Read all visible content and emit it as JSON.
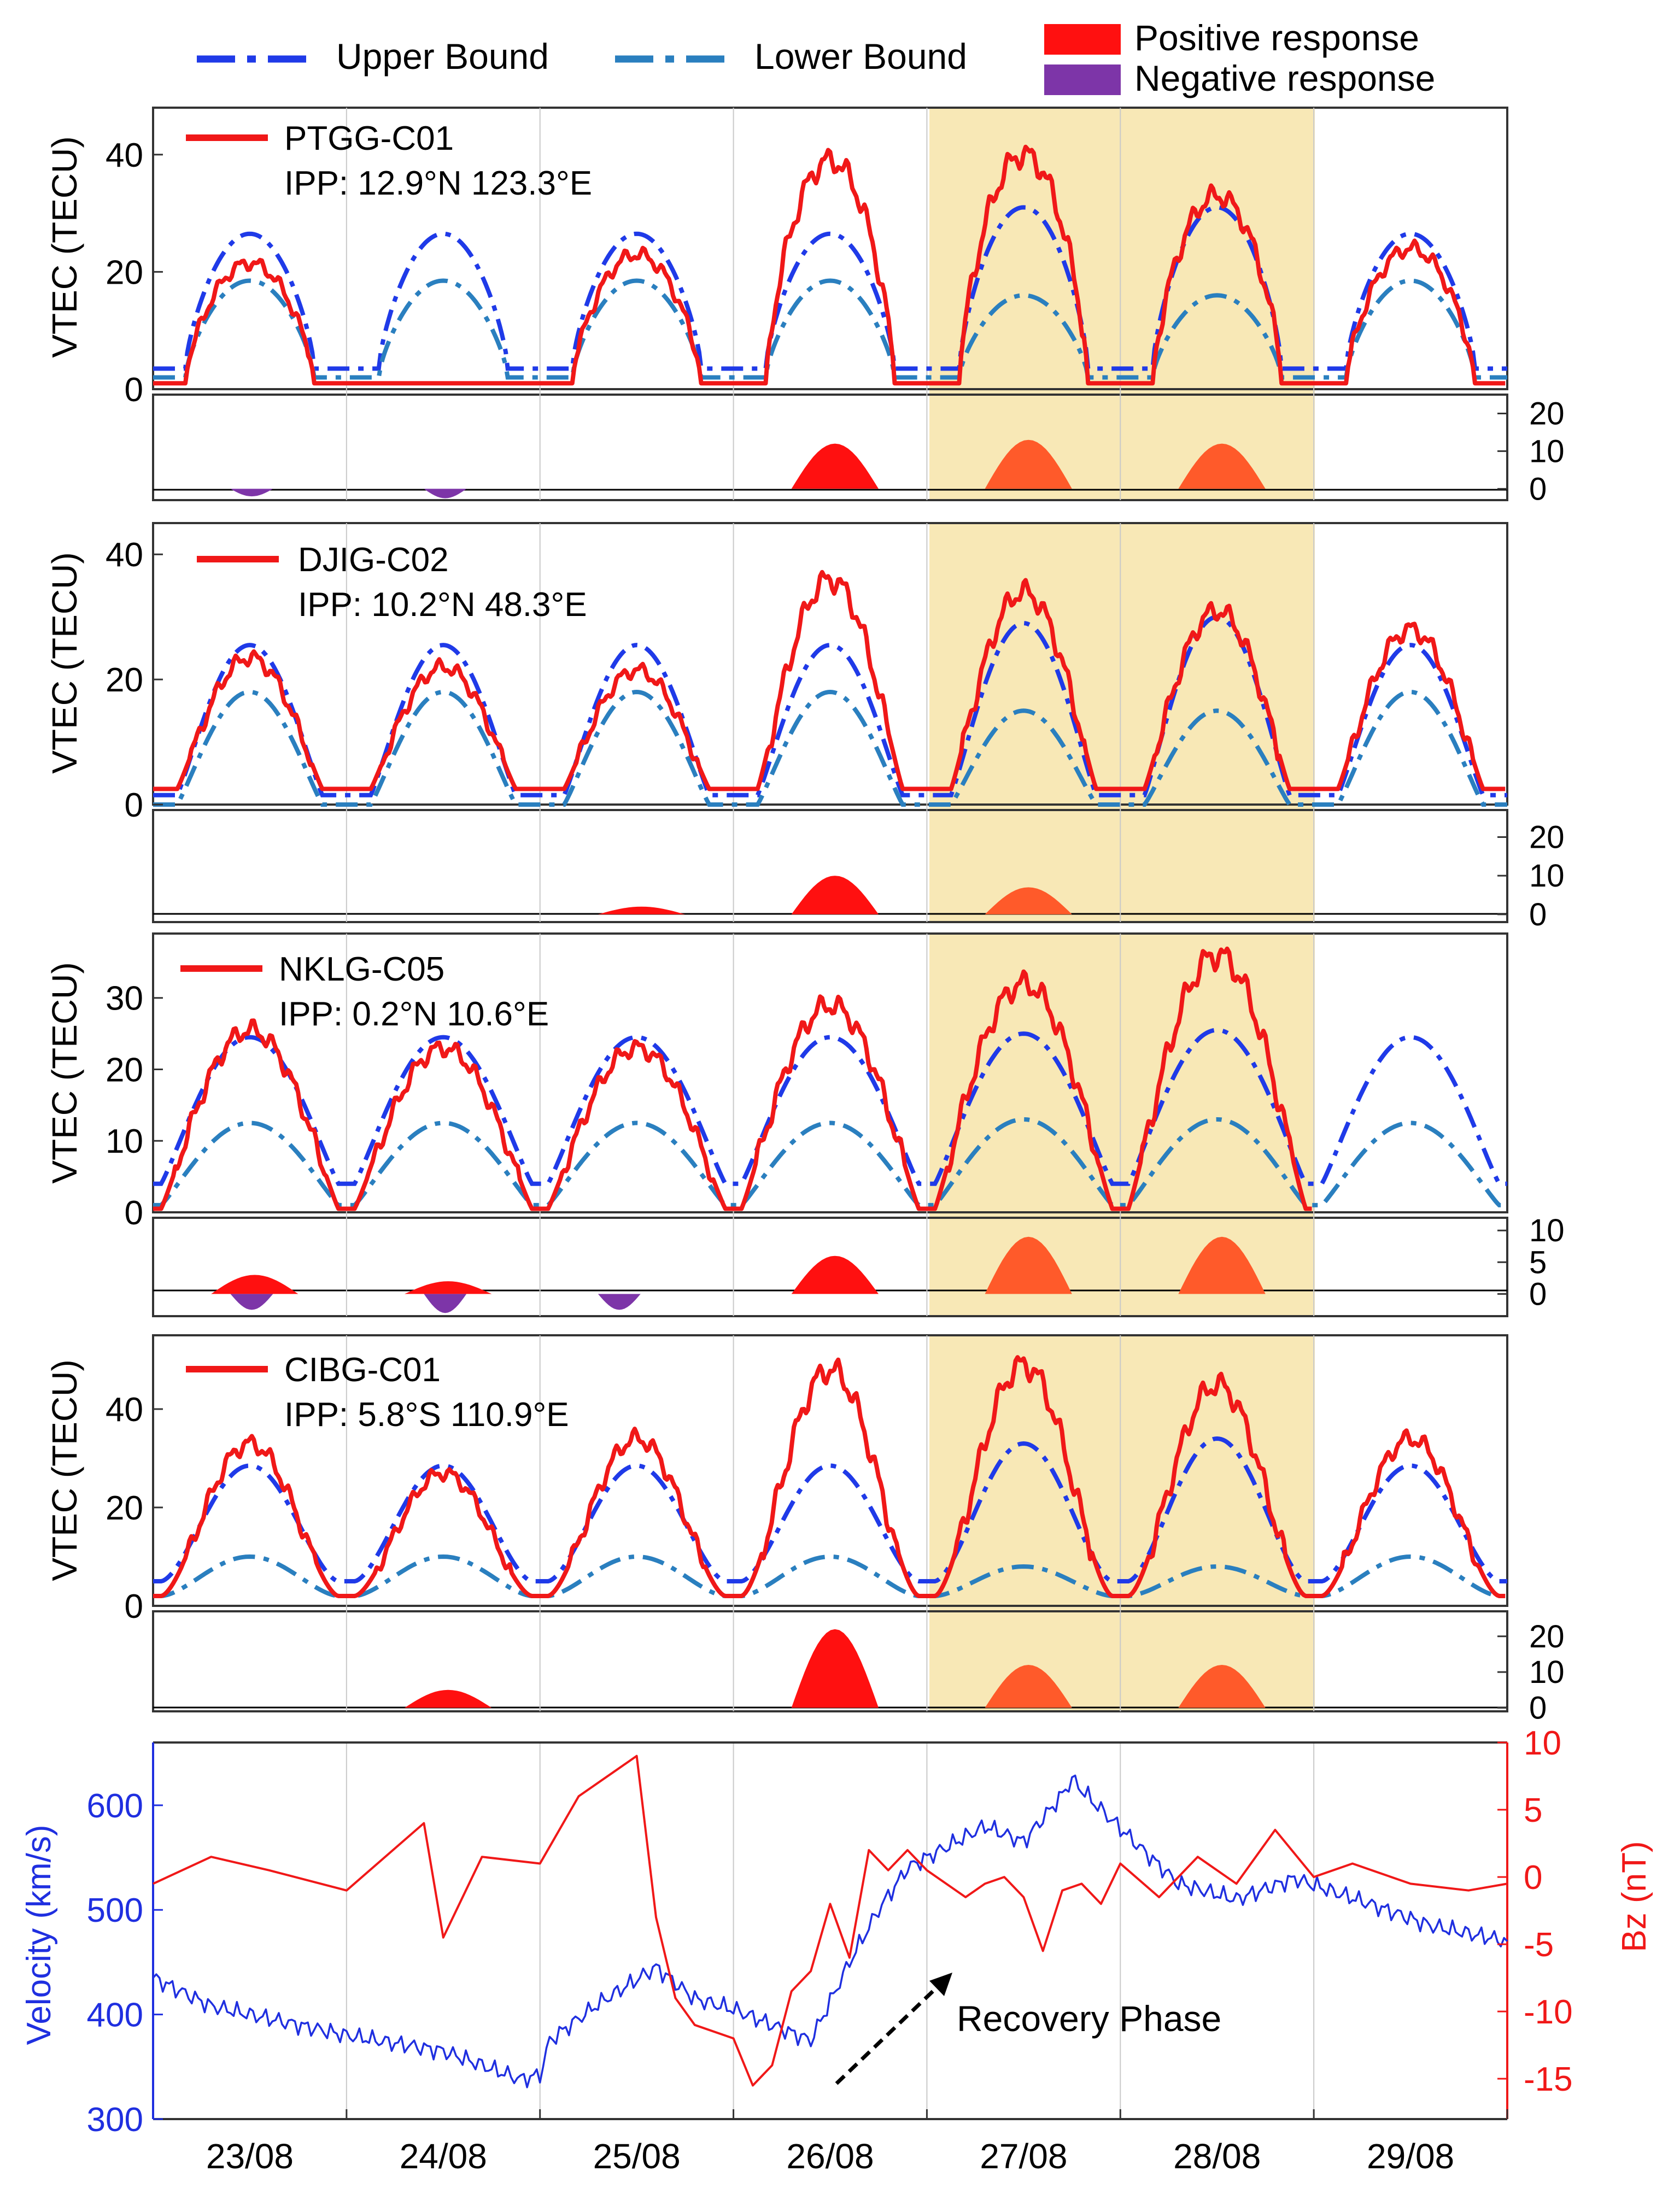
{
  "colors": {
    "upper": "#1f3ae8",
    "lower": "#2a7fbf",
    "vtec": "#f01818",
    "positive": "#ff1010",
    "negative": "#7d35a8",
    "storm_shade": "#f8e8b6",
    "velocity": "#1f2fe0",
    "bz": "#f01818"
  },
  "legend": {
    "upper": "Upper Bound",
    "lower": "Lower Bound",
    "positive": "Positive response",
    "negative": "Negative response"
  },
  "chart_data": {
    "type": "line",
    "x_ticks": [
      "23/08",
      "24/08",
      "25/08",
      "26/08",
      "27/08",
      "28/08",
      "29/08"
    ],
    "x_range_days": [
      0,
      7
    ],
    "storm_window_days": [
      4.0,
      6.0
    ],
    "vtec_ylabel": "VTEC  (TECU)",
    "panels": [
      {
        "station": "PTGG-C01",
        "ipp": "IPP: 12.9°N 123.3°E",
        "ylim": [
          0,
          48
        ],
        "yticks": [
          0,
          20,
          40
        ],
        "daily_upper_peak": 26.5,
        "daily_upper_min": 3.5,
        "daily_lower_peak": 18.5,
        "daily_lower_min": 2,
        "storm_upper_peaks": [
          31,
          31
        ],
        "storm_lower_peaks": [
          16,
          16
        ],
        "vtec_daily_peaks": [
          21.5,
          0,
          23,
          39,
          40,
          33,
          24
        ],
        "vtec_daily_minimum": 1,
        "response_ylim": [
          -3,
          25
        ],
        "response_yticks": [
          0,
          10,
          20
        ],
        "positive_peaks": [
          12,
          13,
          12
        ],
        "negative_troughs": [
          -2,
          -2.5
        ]
      },
      {
        "station": "DJIG-C02",
        "ipp": "IPP: 10.2°N 48.3°E",
        "ylim": [
          0,
          45
        ],
        "yticks": [
          0,
          20,
          40
        ],
        "daily_upper_peak": 25.5,
        "daily_upper_min": 1.5,
        "daily_lower_peak": 18,
        "daily_lower_min": 0,
        "storm_upper_peaks": [
          29,
          30
        ],
        "storm_lower_peaks": [
          15,
          15
        ],
        "vtec_daily_peaks": [
          23.5,
          22,
          21.5,
          36,
          34,
          31,
          28
        ],
        "vtec_daily_minimum": 2.5,
        "response_ylim": [
          -2,
          27
        ],
        "response_yticks": [
          0,
          10,
          20
        ],
        "positive_peaks": [
          2,
          10,
          7
        ],
        "negative_troughs": []
      },
      {
        "station": "NKLG-C05",
        "ipp": "IPP: 0.2°N 10.6°E",
        "ylim": [
          0,
          39
        ],
        "yticks": [
          0,
          10,
          20,
          30
        ],
        "daily_upper_peak": 24.5,
        "daily_upper_min": 4,
        "daily_lower_peak": 12.5,
        "daily_lower_min": 1,
        "storm_upper_peaks": [
          25,
          25.5
        ],
        "storm_lower_peaks": [
          13,
          13
        ],
        "vtec_daily_peaks": [
          25.5,
          23,
          23,
          29,
          32,
          36
        ],
        "vtec_daily_minimum": 0.5,
        "response_ylim": [
          -3.5,
          12
        ],
        "response_yticks": [
          0,
          5,
          10
        ],
        "positive_peaks": [
          3,
          2,
          6,
          9,
          9
        ],
        "negative_troughs": [
          -2.5,
          -3,
          -2.5
        ]
      },
      {
        "station": "CIBG-C01",
        "ipp": "IPP: 5.8°S 110.9°E",
        "ylim": [
          0,
          55
        ],
        "yticks": [
          0,
          20,
          40
        ],
        "daily_upper_peak": 28.5,
        "daily_upper_min": 5,
        "daily_lower_peak": 10,
        "daily_lower_min": 2,
        "storm_upper_peaks": [
          33,
          34
        ],
        "storm_lower_peaks": [
          8,
          8
        ],
        "vtec_daily_peaks": [
          33,
          27,
          34,
          48,
          49,
          45,
          34
        ],
        "vtec_daily_minimum": 2,
        "response_ylim": [
          -1,
          27
        ],
        "response_yticks": [
          0,
          10,
          20
        ],
        "positive_peaks": [
          5,
          22,
          12,
          12
        ],
        "negative_troughs": []
      }
    ],
    "solar_wind": {
      "velocity_label": "Velocity (km/s)",
      "bz_label": "Bz (nT)",
      "velocity_ylim": [
        300,
        660
      ],
      "velocity_yticks": [
        300,
        400,
        500,
        600
      ],
      "bz_ylim": [
        -18,
        10
      ],
      "bz_yticks": [
        -15,
        -10,
        -5,
        0,
        5,
        10
      ],
      "velocity_series": {
        "x": [
          0,
          0.3,
          1.0,
          1.5,
          1.9,
          2.0,
          2.05,
          2.3,
          2.6,
          2.8,
          3.0,
          3.2,
          3.4,
          3.6,
          3.75,
          3.9,
          4.1,
          4.3,
          4.5,
          4.7,
          4.75,
          4.85,
          5.1,
          5.3,
          5.6,
          5.9,
          6.3,
          6.6,
          7.0
        ],
        "y": [
          435,
          408,
          380,
          365,
          338,
          342,
          375,
          410,
          445,
          415,
          405,
          390,
          375,
          450,
          500,
          540,
          560,
          580,
          565,
          610,
          625,
          605,
          560,
          525,
          510,
          530,
          505,
          485,
          470
        ]
      },
      "bz_series": {
        "x": [
          0,
          0.3,
          0.6,
          1.0,
          1.4,
          1.5,
          1.7,
          2.0,
          2.2,
          2.4,
          2.5,
          2.6,
          2.7,
          2.8,
          3.0,
          3.1,
          3.2,
          3.3,
          3.4,
          3.5,
          3.6,
          3.7,
          3.8,
          3.9,
          4.0,
          4.1,
          4.2,
          4.3,
          4.4,
          4.5,
          4.6,
          4.7,
          4.8,
          4.9,
          5.0,
          5.2,
          5.4,
          5.6,
          5.8,
          6.0,
          6.2,
          6.5,
          6.8,
          7.0
        ],
        "y": [
          -0.5,
          1.5,
          0.5,
          -1.0,
          4.0,
          -4.5,
          1.5,
          1.0,
          6.0,
          8.0,
          9.0,
          -3.0,
          -9.0,
          -11.0,
          -12.0,
          -15.5,
          -14.0,
          -8.5,
          -7.0,
          -2.0,
          -6.0,
          2.0,
          0.5,
          2.0,
          0.5,
          -0.5,
          -1.5,
          -0.5,
          0.0,
          -1.5,
          -5.5,
          -1.0,
          -0.5,
          -2.0,
          1.0,
          -1.5,
          1.5,
          -0.5,
          3.5,
          0.0,
          1.0,
          -0.5,
          -1.0,
          -0.5
        ]
      }
    },
    "annotation": "Recovery Phase"
  }
}
